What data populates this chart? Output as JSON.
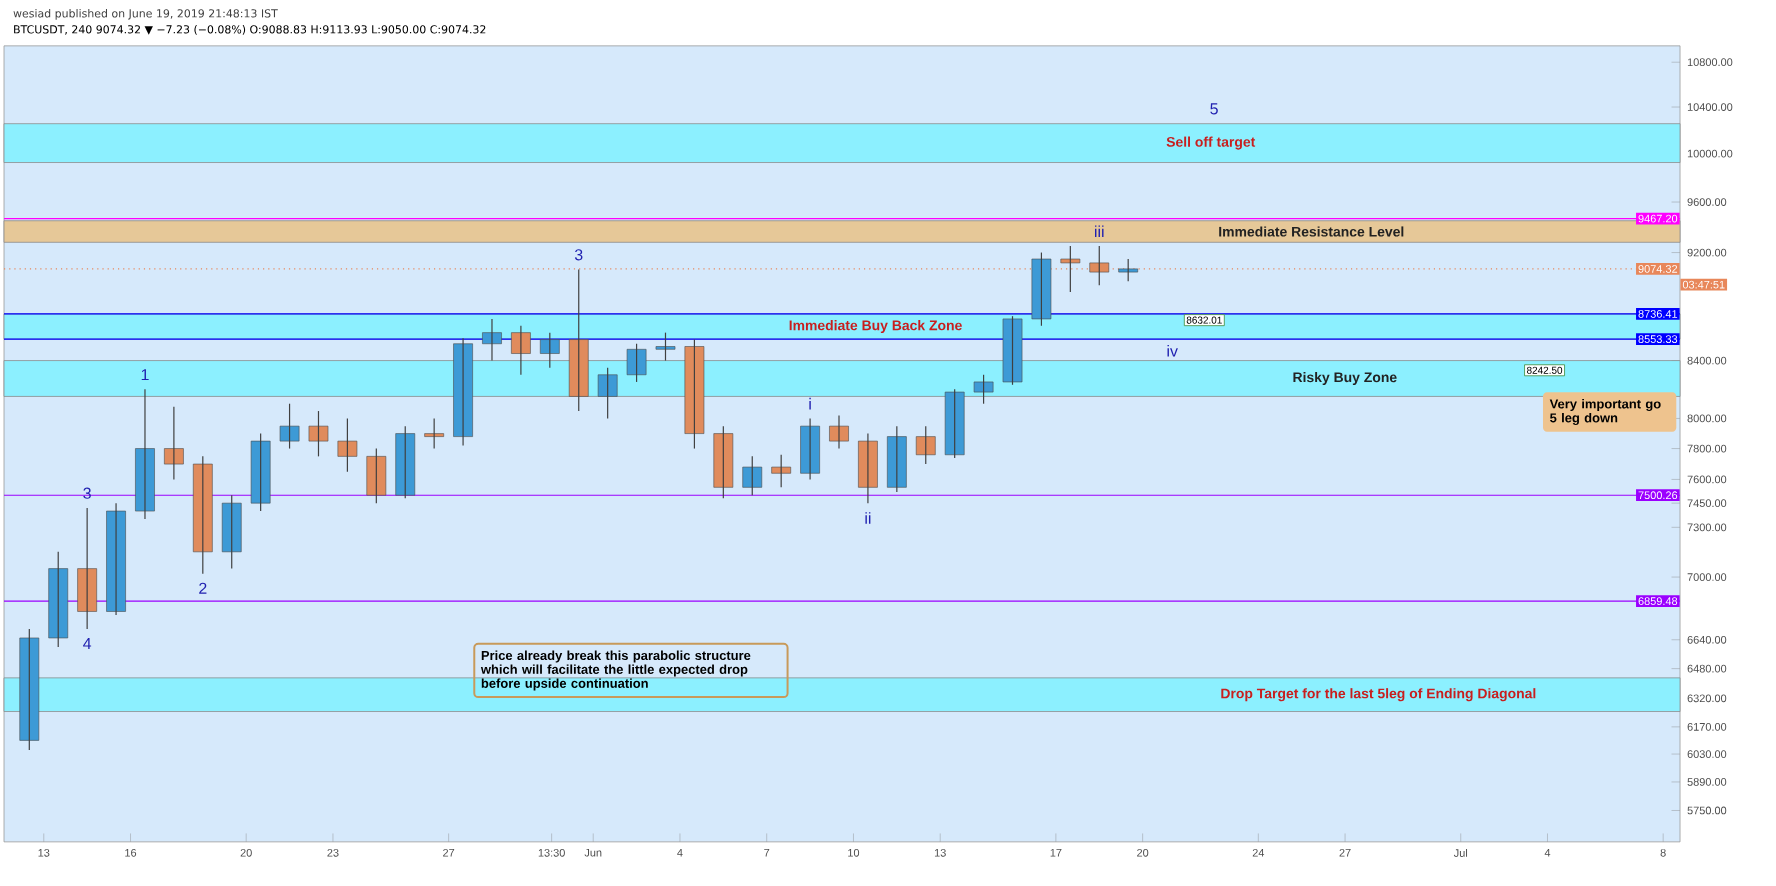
{
  "chart_data": {
    "type": "candlestick",
    "title": "BTCUSDT, 240 9074.32 ▼ −7.23 (−0.08%) O:9088.83 H:9113.93 L:9050.00 C:9074.32",
    "subtitle": "wesiad published on June 19, 2019 21:48:13 IST",
    "x": [
      "2019-05-12T12:00",
      "2019-05-13T12:00",
      "2019-05-14T12:00",
      "2019-05-15T12:00",
      "2019-05-16T12:00",
      "2019-05-17T12:00",
      "2019-05-18T12:00",
      "2019-05-19T12:00",
      "2019-05-20T12:00",
      "2019-05-21T12:00",
      "2019-05-22T12:00",
      "2019-05-23T12:00",
      "2019-05-24T12:00",
      "2019-05-25T12:00",
      "2019-05-26T12:00",
      "2019-05-27T12:00",
      "2019-05-28T12:00",
      "2019-05-29T12:00",
      "2019-05-30T12:00",
      "2019-05-31T12:00",
      "2019-06-01T12:00",
      "2019-06-02T12:00",
      "2019-06-03T12:00",
      "2019-06-04T12:00",
      "2019-06-05T12:00",
      "2019-06-06T12:00",
      "2019-06-07T12:00",
      "2019-06-08T12:00",
      "2019-06-09T12:00",
      "2019-06-10T12:00",
      "2019-06-11T12:00",
      "2019-06-12T12:00",
      "2019-06-13T12:00",
      "2019-06-14T12:00",
      "2019-06-15T12:00",
      "2019-06-16T12:00",
      "2019-06-17T12:00",
      "2019-06-18T12:00",
      "2019-06-19T12:00"
    ],
    "ohlc": [
      [
        6100,
        6700,
        6050,
        6650
      ],
      [
        6650,
        7150,
        6600,
        7050
      ],
      [
        7050,
        7420,
        6700,
        6800
      ],
      [
        6800,
        7450,
        6780,
        7400
      ],
      [
        7400,
        8200,
        7350,
        7800
      ],
      [
        7800,
        8080,
        7600,
        7700
      ],
      [
        7700,
        7750,
        7020,
        7150
      ],
      [
        7150,
        7500,
        7050,
        7450
      ],
      [
        7450,
        7900,
        7400,
        7850
      ],
      [
        7850,
        8100,
        7800,
        7950
      ],
      [
        7950,
        8050,
        7750,
        7850
      ],
      [
        7850,
        8000,
        7650,
        7750
      ],
      [
        7750,
        7800,
        7450,
        7500
      ],
      [
        7500,
        7950,
        7480,
        7900
      ],
      [
        7900,
        8000,
        7800,
        7880
      ],
      [
        7880,
        8560,
        7820,
        8520
      ],
      [
        8520,
        8700,
        8400,
        8600
      ],
      [
        8600,
        8650,
        8300,
        8450
      ],
      [
        8450,
        8600,
        8350,
        8550
      ],
      [
        8550,
        9070,
        8050,
        8150
      ],
      [
        8150,
        8350,
        8000,
        8300
      ],
      [
        8300,
        8520,
        8250,
        8480
      ],
      [
        8480,
        8600,
        8400,
        8500
      ],
      [
        8500,
        8550,
        7800,
        7900
      ],
      [
        7900,
        7950,
        7480,
        7550
      ],
      [
        7550,
        7750,
        7500,
        7680
      ],
      [
        7680,
        7760,
        7550,
        7640
      ],
      [
        7640,
        8000,
        7600,
        7950
      ],
      [
        7950,
        8020,
        7800,
        7850
      ],
      [
        7850,
        7900,
        7450,
        7550
      ],
      [
        7550,
        7950,
        7520,
        7880
      ],
      [
        7880,
        7950,
        7700,
        7760
      ],
      [
        7760,
        8200,
        7740,
        8180
      ],
      [
        8180,
        8300,
        8100,
        8250
      ],
      [
        8250,
        8720,
        8230,
        8700
      ],
      [
        8700,
        9200,
        8650,
        9150
      ],
      [
        9150,
        9250,
        8900,
        9120
      ],
      [
        9120,
        9250,
        8950,
        9050
      ],
      [
        9050,
        9150,
        8980,
        9074.32
      ]
    ],
    "colors": [
      "#3d9ad6",
      "#3d9ad6",
      "#e08b5c",
      "#3d9ad6",
      "#3d9ad6",
      "#e08b5c",
      "#e08b5c",
      "#3d9ad6",
      "#3d9ad6",
      "#3d9ad6",
      "#e08b5c",
      "#e08b5c",
      "#e08b5c",
      "#3d9ad6",
      "#e08b5c",
      "#3d9ad6",
      "#3d9ad6",
      "#e08b5c",
      "#3d9ad6",
      "#e08b5c",
      "#3d9ad6",
      "#3d9ad6",
      "#3d9ad6",
      "#e08b5c",
      "#e08b5c",
      "#3d9ad6",
      "#e08b5c",
      "#3d9ad6",
      "#e08b5c",
      "#e08b5c",
      "#3d9ad6",
      "#e08b5c",
      "#3d9ad6",
      "#3d9ad6",
      "#3d9ad6",
      "#3d9ad6",
      "#e08b5c",
      "#e08b5c",
      "#3d9ad6"
    ],
    "log": true,
    "xlim": [
      "2019-05-11T15:00",
      "2019-07-08T14:00"
    ],
    "xticks": [
      {
        "value": "2019-05-13",
        "label": "13"
      },
      {
        "value": "2019-05-16",
        "label": "16"
      },
      {
        "value": "2019-05-20",
        "label": "20"
      },
      {
        "value": "2019-05-23",
        "label": "23"
      },
      {
        "value": "2019-05-27",
        "label": "27"
      },
      {
        "value": "2019-05-30T13:30",
        "label": "13:30"
      },
      {
        "value": "2019-06-01",
        "label": "Jun"
      },
      {
        "value": "2019-06-04",
        "label": "4"
      },
      {
        "value": "2019-06-07",
        "label": "7"
      },
      {
        "value": "2019-06-10",
        "label": "10"
      },
      {
        "value": "2019-06-13",
        "label": "13"
      },
      {
        "value": "2019-06-17",
        "label": "17"
      },
      {
        "value": "2019-06-20",
        "label": "20"
      },
      {
        "value": "2019-06-24",
        "label": "24"
      },
      {
        "value": "2019-06-27",
        "label": "27"
      },
      {
        "value": "2019-07-01",
        "label": "Jul"
      },
      {
        "value": "2019-07-04",
        "label": "4"
      },
      {
        "value": "2019-07-08",
        "label": "8"
      }
    ],
    "ylim": [
      5600,
      10950
    ],
    "yticks": [
      {
        "value": 5750,
        "label": "5750.00"
      },
      {
        "value": 5890,
        "label": "5890.00"
      },
      {
        "value": 6030,
        "label": "6030.00"
      },
      {
        "value": 6170,
        "label": "6170.00"
      },
      {
        "value": 6320,
        "label": "6320.00"
      },
      {
        "value": 6480,
        "label": "6480.00"
      },
      {
        "value": 6640,
        "label": "6640.00"
      },
      {
        "value": 7000,
        "label": "7000.00"
      },
      {
        "value": 7300,
        "label": "7300.00"
      },
      {
        "value": 7450,
        "label": "7450.00"
      },
      {
        "value": 7600,
        "label": "7600.00"
      },
      {
        "value": 7800,
        "label": "7800.00"
      },
      {
        "value": 8000,
        "label": "8000.00"
      },
      {
        "value": 8400,
        "label": "8400.00"
      },
      {
        "value": 9200,
        "label": "9200.00"
      },
      {
        "value": 9600,
        "label": "9600.00"
      },
      {
        "value": 10000,
        "label": "10000.00"
      },
      {
        "value": 10400,
        "label": "10400.00"
      },
      {
        "value": 10800,
        "label": "10800.00"
      }
    ],
    "bands": [
      {
        "axis": "y",
        "from": 9925,
        "to": 10255,
        "label": "Sell off target",
        "color": "#8cf0ff"
      },
      {
        "axis": "y",
        "from": 9280,
        "to": 9450,
        "label": "Immediate Resistance Level",
        "color": "#e6c898"
      },
      {
        "axis": "y",
        "from": 8553.33,
        "to": 8736.41,
        "label": "Immediate Buy Back Zone",
        "color": "#8cf0ff"
      },
      {
        "axis": "y",
        "from": 8150,
        "to": 8400,
        "label": "Risky Buy Zone",
        "color": "#8cf0ff"
      },
      {
        "axis": "y",
        "from": 6250,
        "to": 6430,
        "label": "Drop Target for the last 5leg of Ending Diagonal",
        "color": "#8cf0ff"
      }
    ],
    "ref_lines": [
      {
        "axis": "y",
        "value": 9467.2,
        "label": "9467.20",
        "color": "#ff00ff"
      },
      {
        "axis": "y",
        "value": 9074.32,
        "label": "9074.32",
        "color": "#e8875a",
        "line_style": "dotted"
      },
      {
        "axis": "y",
        "value": 8736.41,
        "label": "8736.41",
        "color": "#0000ff"
      },
      {
        "axis": "y",
        "value": 8553.33,
        "label": "8553.33",
        "color": "#0000ff"
      },
      {
        "axis": "y",
        "value": 7500.26,
        "label": "7500.26",
        "color": "#9a00ff"
      },
      {
        "axis": "y",
        "value": 6859.48,
        "label": "6859.48",
        "color": "#9a00ff"
      }
    ],
    "annotations": [
      {
        "text": "3",
        "x": "2019-05-14T12:00",
        "y": 7420
      },
      {
        "text": "4",
        "x": "2019-05-14T12:00",
        "y": 6700
      },
      {
        "text": "1",
        "x": "2019-05-16T12:00",
        "y": 8200
      },
      {
        "text": "2",
        "x": "2019-05-18T12:00",
        "y": 7020
      },
      {
        "text": "3",
        "x": "2019-05-31T12:00",
        "y": 9070
      },
      {
        "text": "i",
        "x": "2019-06-08T12:00",
        "y": 8000
      },
      {
        "text": "ii",
        "x": "2019-06-10T12:00",
        "y": 7450
      },
      {
        "text": "iii",
        "x": "2019-06-18T12:00",
        "y": 9250
      },
      "iv",
      "8632.01",
      "5",
      "8242.50",
      "Price already break this parabolic structure which will facilitate the little expected drop before upside continuation",
      "Very important go 5 leg down",
      "03:47:51"
    ]
  }
}
